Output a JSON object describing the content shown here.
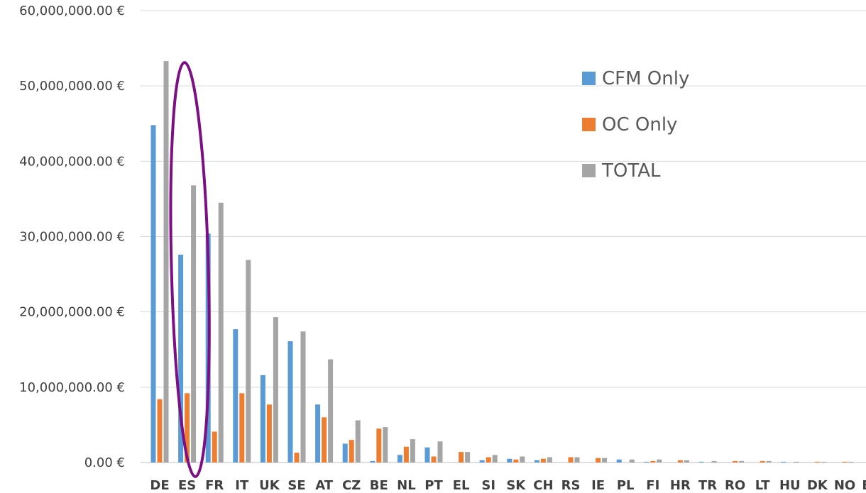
{
  "chart_data": {
    "type": "bar",
    "categories": [
      "DE",
      "ES",
      "FR",
      "IT",
      "UK",
      "SE",
      "AT",
      "CZ",
      "BE",
      "NL",
      "PT",
      "EL",
      "SI",
      "SK",
      "CH",
      "RS",
      "IE",
      "PL",
      "FI",
      "HR",
      "TR",
      "RO",
      "LT",
      "HU",
      "DK",
      "NO",
      "BG"
    ],
    "series": [
      {
        "name": "CFM Only",
        "color": "#5b9bd5",
        "values": [
          44800000,
          27600000,
          30400000,
          17700000,
          11600000,
          16100000,
          7700000,
          2500000,
          200000,
          1000000,
          2000000,
          0,
          300000,
          500000,
          300000,
          0,
          0,
          400000,
          100000,
          0,
          100000,
          0,
          0,
          100000,
          0,
          0,
          0
        ]
      },
      {
        "name": "OC Only",
        "color": "#ed7d31",
        "values": [
          8400000,
          9200000,
          4100000,
          9200000,
          7700000,
          1300000,
          6000000,
          3000000,
          4500000,
          2100000,
          800000,
          1400000,
          700000,
          400000,
          500000,
          700000,
          600000,
          0,
          200000,
          300000,
          0,
          200000,
          200000,
          0,
          100000,
          100000,
          0
        ]
      },
      {
        "name": "TOTAL",
        "color": "#a5a5a5",
        "values": [
          53300000,
          36800000,
          34500000,
          26900000,
          19300000,
          17400000,
          13700000,
          5600000,
          4700000,
          3100000,
          2800000,
          1400000,
          1000000,
          800000,
          700000,
          700000,
          600000,
          400000,
          400000,
          300000,
          200000,
          200000,
          200000,
          100000,
          100000,
          100000,
          100000
        ]
      }
    ],
    "yticks": [
      "0.00 €",
      "10,000,000.00 €",
      "20,000,000.00 €",
      "30,000,000.00 €",
      "40,000,000.00 €",
      "50,000,000.00 €",
      "60,000,000.00 €"
    ],
    "ylim": [
      0,
      60000000
    ],
    "grid": true,
    "legend_position": "top-right",
    "highlight": {
      "shape": "ellipse",
      "category": "ES",
      "color": "#7b0f83"
    }
  }
}
